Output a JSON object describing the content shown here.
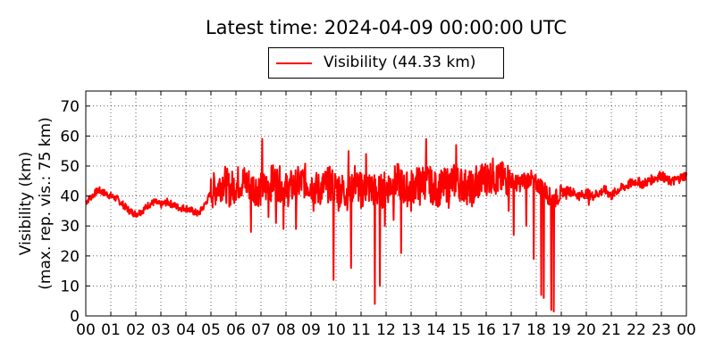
{
  "chart_data": {
    "type": "line",
    "title": "Latest time: 2024-04-09 00:00:00 UTC",
    "ylabel_line1": "Visibility (km)",
    "ylabel_line2": "(max. rep. vis.: 75 km)",
    "xlabel": "",
    "ylim": [
      0,
      75
    ],
    "xlim": [
      0,
      24
    ],
    "yticks": [
      0,
      10,
      20,
      30,
      40,
      50,
      60,
      70
    ],
    "xtick_labels": [
      "00",
      "01",
      "02",
      "03",
      "04",
      "05",
      "06",
      "07",
      "08",
      "09",
      "10",
      "11",
      "12",
      "13",
      "14",
      "15",
      "16",
      "17",
      "18",
      "19",
      "20",
      "21",
      "22",
      "23",
      "00"
    ],
    "grid": true,
    "legend_position": "top-center",
    "series": [
      {
        "name": "Visibility (44.33 km)",
        "color": "#ff0000",
        "x": [
          0.0,
          0.25,
          0.5,
          0.75,
          1.0,
          1.25,
          1.5,
          1.75,
          2.0,
          2.25,
          2.5,
          2.75,
          3.0,
          3.25,
          3.5,
          3.75,
          4.0,
          4.25,
          4.5,
          4.75,
          5.0,
          5.25,
          5.5,
          5.75,
          6.0,
          6.25,
          6.5,
          6.75,
          7.0,
          7.25,
          7.5,
          7.75,
          8.0,
          8.25,
          8.5,
          8.75,
          9.0,
          9.25,
          9.5,
          9.75,
          10.0,
          10.25,
          10.5,
          10.75,
          11.0,
          11.25,
          11.5,
          11.75,
          12.0,
          12.25,
          12.5,
          12.75,
          13.0,
          13.25,
          13.5,
          13.75,
          14.0,
          14.25,
          14.5,
          14.75,
          15.0,
          15.25,
          15.5,
          15.75,
          16.0,
          16.25,
          16.5,
          16.75,
          17.0,
          17.25,
          17.5,
          17.75,
          18.0,
          18.25,
          18.5,
          18.75,
          19.0,
          19.25,
          19.5,
          19.75,
          20.0,
          20.25,
          20.5,
          20.75,
          21.0,
          21.25,
          21.5,
          21.75,
          22.0,
          22.25,
          22.5,
          22.75,
          23.0,
          23.25,
          23.5,
          23.75,
          24.0
        ],
        "y": [
          38,
          40,
          42,
          41,
          40,
          39,
          37,
          35,
          34,
          35,
          37,
          38,
          37,
          38,
          37,
          36,
          36,
          35,
          34,
          37,
          41,
          43,
          45,
          42,
          44,
          45,
          44,
          43,
          42,
          43,
          45,
          44,
          42,
          43,
          44,
          45,
          44,
          42,
          43,
          44,
          43,
          42,
          41,
          45,
          42,
          43,
          42,
          41,
          43,
          44,
          45,
          42,
          43,
          44,
          45,
          44,
          42,
          43,
          44,
          45,
          44,
          43,
          42,
          45,
          46,
          47,
          45,
          46,
          45,
          44,
          45,
          46,
          44,
          43,
          40,
          39,
          41,
          42,
          41,
          40,
          41,
          40,
          41,
          42,
          40,
          42,
          43,
          44,
          45,
          44,
          45,
          46,
          47,
          45,
          45,
          46,
          47
        ],
        "excursions": [
          [
            6.6,
            28
          ],
          [
            7.05,
            59
          ],
          [
            7.3,
            33
          ],
          [
            7.6,
            31
          ],
          [
            7.9,
            29
          ],
          [
            8.4,
            29
          ],
          [
            9.1,
            35
          ],
          [
            9.9,
            12
          ],
          [
            10.1,
            35
          ],
          [
            10.5,
            55
          ],
          [
            10.6,
            16
          ],
          [
            11.0,
            36
          ],
          [
            11.2,
            54
          ],
          [
            11.55,
            4
          ],
          [
            11.75,
            10
          ],
          [
            11.95,
            30
          ],
          [
            12.3,
            32
          ],
          [
            12.6,
            21
          ],
          [
            13.0,
            35
          ],
          [
            13.35,
            37
          ],
          [
            13.6,
            59
          ],
          [
            13.9,
            38
          ],
          [
            14.5,
            36
          ],
          [
            14.8,
            57
          ],
          [
            15.6,
            50
          ],
          [
            16.3,
            48
          ],
          [
            16.9,
            35
          ],
          [
            17.1,
            27
          ],
          [
            17.6,
            30
          ],
          [
            17.9,
            19
          ],
          [
            18.2,
            7
          ],
          [
            18.3,
            6
          ],
          [
            18.6,
            2
          ],
          [
            18.7,
            1.5
          ],
          [
            19.2,
            39
          ],
          [
            20.1,
            37
          ]
        ]
      }
    ]
  }
}
